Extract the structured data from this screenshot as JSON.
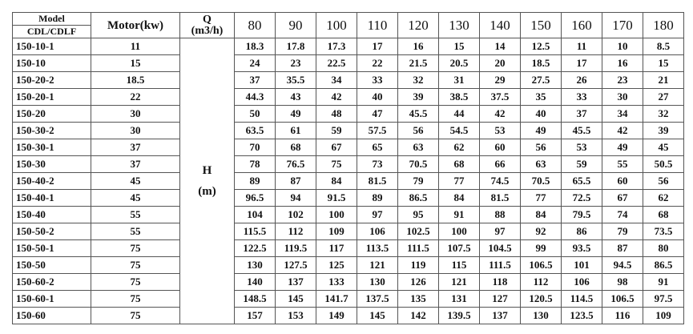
{
  "header": {
    "model_top": "Model",
    "model_bottom": "CDL/CDLF",
    "motor": "Motor(kw)",
    "q_label": "Q",
    "q_unit": "(m3/h)",
    "h_label": "H",
    "h_unit": "(m)",
    "flows": [
      "80",
      "90",
      "100",
      "110",
      "120",
      "130",
      "140",
      "150",
      "160",
      "170",
      "180"
    ]
  },
  "rows": [
    {
      "model": "150-10-1",
      "motor": "11",
      "head": [
        "18.3",
        "17.8",
        "17.3",
        "17",
        "16",
        "15",
        "14",
        "12.5",
        "11",
        "10",
        "8.5"
      ]
    },
    {
      "model": "150-10",
      "motor": "15",
      "head": [
        "24",
        "23",
        "22.5",
        "22",
        "21.5",
        "20.5",
        "20",
        "18.5",
        "17",
        "16",
        "15"
      ]
    },
    {
      "model": "150-20-2",
      "motor": "18.5",
      "head": [
        "37",
        "35.5",
        "34",
        "33",
        "32",
        "31",
        "29",
        "27.5",
        "26",
        "23",
        "21"
      ]
    },
    {
      "model": "150-20-1",
      "motor": "22",
      "head": [
        "44.3",
        "43",
        "42",
        "40",
        "39",
        "38.5",
        "37.5",
        "35",
        "33",
        "30",
        "27"
      ]
    },
    {
      "model": "150-20",
      "motor": "30",
      "head": [
        "50",
        "49",
        "48",
        "47",
        "45.5",
        "44",
        "42",
        "40",
        "37",
        "34",
        "32"
      ]
    },
    {
      "model": "150-30-2",
      "motor": "30",
      "head": [
        "63.5",
        "61",
        "59",
        "57.5",
        "56",
        "54.5",
        "53",
        "49",
        "45.5",
        "42",
        "39"
      ]
    },
    {
      "model": "150-30-1",
      "motor": "37",
      "head": [
        "70",
        "68",
        "67",
        "65",
        "63",
        "62",
        "60",
        "56",
        "53",
        "49",
        "45"
      ]
    },
    {
      "model": "150-30",
      "motor": "37",
      "head": [
        "78",
        "76.5",
        "75",
        "73",
        "70.5",
        "68",
        "66",
        "63",
        "59",
        "55",
        "50.5"
      ]
    },
    {
      "model": "150-40-2",
      "motor": "45",
      "head": [
        "89",
        "87",
        "84",
        "81.5",
        "79",
        "77",
        "74.5",
        "70.5",
        "65.5",
        "60",
        "56"
      ]
    },
    {
      "model": "150-40-1",
      "motor": "45",
      "head": [
        "96.5",
        "94",
        "91.5",
        "89",
        "86.5",
        "84",
        "81.5",
        "77",
        "72.5",
        "67",
        "62"
      ]
    },
    {
      "model": "150-40",
      "motor": "55",
      "head": [
        "104",
        "102",
        "100",
        "97",
        "95",
        "91",
        "88",
        "84",
        "79.5",
        "74",
        "68"
      ]
    },
    {
      "model": "150-50-2",
      "motor": "55",
      "head": [
        "115.5",
        "112",
        "109",
        "106",
        "102.5",
        "100",
        "97",
        "92",
        "86",
        "79",
        "73.5"
      ]
    },
    {
      "model": "150-50-1",
      "motor": "75",
      "head": [
        "122.5",
        "119.5",
        "117",
        "113.5",
        "111.5",
        "107.5",
        "104.5",
        "99",
        "93.5",
        "87",
        "80"
      ]
    },
    {
      "model": "150-50",
      "motor": "75",
      "head": [
        "130",
        "127.5",
        "125",
        "121",
        "119",
        "115",
        "111.5",
        "106.5",
        "101",
        "94.5",
        "86.5"
      ]
    },
    {
      "model": "150-60-2",
      "motor": "75",
      "head": [
        "140",
        "137",
        "133",
        "130",
        "126",
        "121",
        "118",
        "112",
        "106",
        "98",
        "91"
      ]
    },
    {
      "model": "150-60-1",
      "motor": "75",
      "head": [
        "148.5",
        "145",
        "141.7",
        "137.5",
        "135",
        "131",
        "127",
        "120.5",
        "114.5",
        "106.5",
        "97.5"
      ]
    },
    {
      "model": "150-60",
      "motor": "75",
      "head": [
        "157",
        "153",
        "149",
        "145",
        "142",
        "139.5",
        "137",
        "130",
        "123.5",
        "116",
        "109"
      ]
    }
  ]
}
